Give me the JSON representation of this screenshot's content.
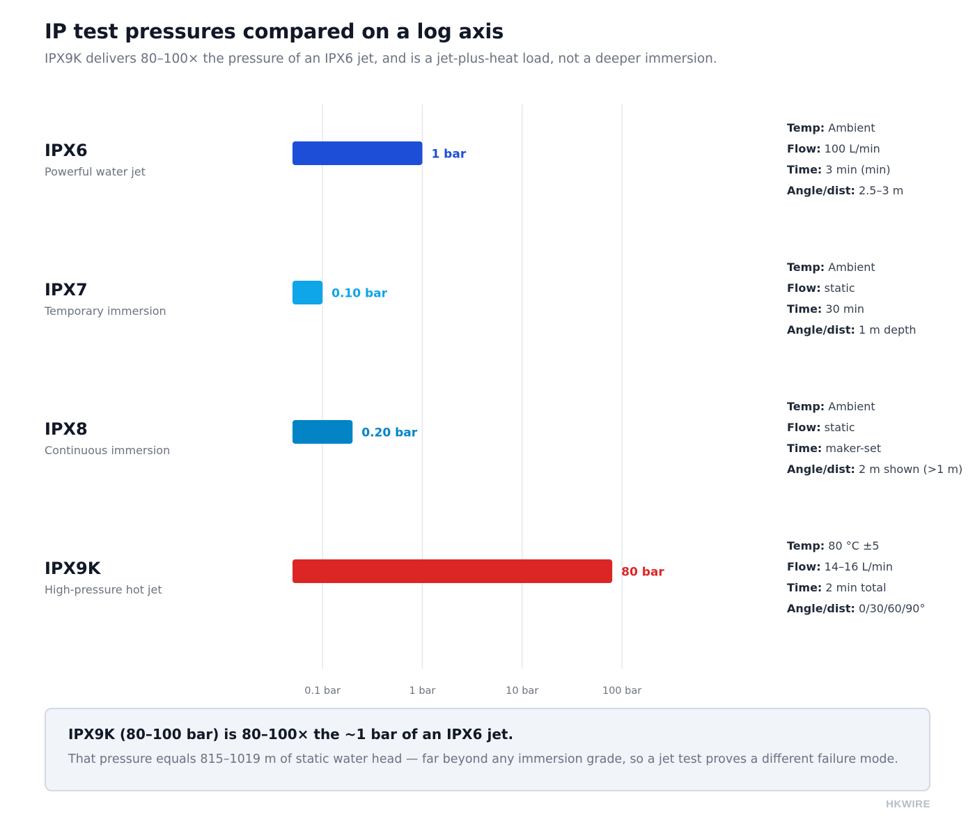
{
  "header": {
    "title": "IP test pressures compared on a log axis",
    "subtitle": "IPX9K delivers 80–100× the pressure of an IPX6 jet, and is a jet-plus-heat load, not a deeper immersion."
  },
  "chart_data": {
    "type": "bar",
    "orientation": "horizontal",
    "scale": "log",
    "xlim": [
      0.05,
      100
    ],
    "x_ticks": [
      0.1,
      1,
      10,
      100
    ],
    "x_tick_labels": [
      "0.1 bar",
      "1 bar",
      "10 bar",
      "100 bar"
    ],
    "grid": true,
    "categories": [
      "IPX6",
      "IPX7",
      "IPX8",
      "IPX9K"
    ],
    "descriptions": [
      "Powerful water jet",
      "Temporary immersion",
      "Continuous immersion",
      "High-pressure hot jet"
    ],
    "values": [
      1,
      0.1,
      0.2,
      80
    ],
    "value_labels": [
      "1 bar",
      "0.10 bar",
      "0.20 bar",
      "80 bar"
    ],
    "colors": [
      "#1d4ed8",
      "#0ea5e9",
      "#0284c7",
      "#dc2626"
    ],
    "specs": [
      {
        "temp": "Ambient",
        "flow": "100 L/min",
        "time": "3 min (min)",
        "angle": "2.5–3 m"
      },
      {
        "temp": "Ambient",
        "flow": "static",
        "time": "30 min",
        "angle": "1 m depth"
      },
      {
        "temp": "Ambient",
        "flow": "static",
        "time": "maker-set",
        "angle": "2 m shown (>1 m)"
      },
      {
        "temp": "80 °C ±5",
        "flow": "14–16 L/min",
        "time": "2 min total",
        "angle": "0/30/60/90°"
      }
    ]
  },
  "spec_labels": {
    "temp": "Temp:",
    "flow": "Flow:",
    "time": "Time:",
    "angle": "Angle/dist:"
  },
  "callout": {
    "headline": "IPX9K (80–100 bar) is 80–100× the ~1 bar of an IPX6 jet.",
    "body": "That pressure equals 815–1019 m of static water head — far beyond any immersion grade, so a jet test proves a different failure mode."
  },
  "brand": "HKWIRE"
}
